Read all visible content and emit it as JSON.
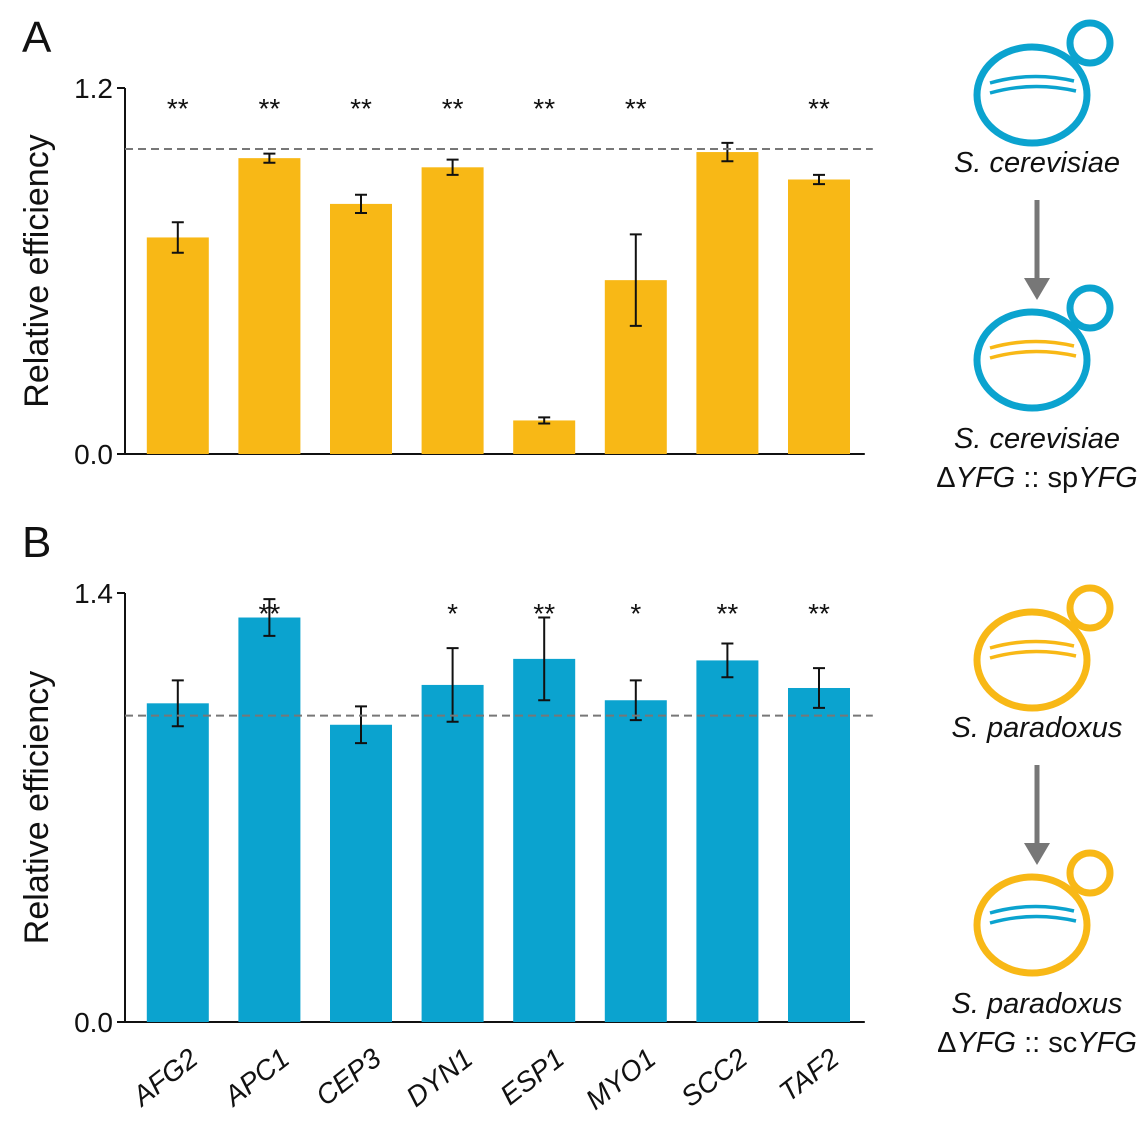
{
  "chart_data": [
    {
      "type": "bar",
      "panel_label": "A",
      "y_label": "Relative efficiency",
      "categories": [
        null,
        null,
        null,
        null,
        null,
        null,
        null,
        null
      ],
      "values": [
        0.71,
        0.97,
        0.82,
        0.94,
        0.11,
        0.57,
        0.99,
        0.9
      ],
      "errors": [
        0.05,
        0.015,
        0.03,
        0.025,
        0.01,
        0.15,
        0.03,
        0.015
      ],
      "significance": [
        "**",
        "**",
        "**",
        "**",
        "**",
        "**",
        null,
        "**"
      ],
      "color": "#f8b816",
      "ref_line": 1,
      "ylim": [
        0,
        1.2
      ],
      "yticks": [
        {
          "value": 0,
          "label": "0.0"
        },
        1.2
      ]
    },
    {
      "type": "bar",
      "panel_label": "B",
      "y_label": "Relative efficiency",
      "categories": [
        "AFG2",
        "APC1",
        "CEP3",
        "DYN1",
        "ESP1",
        "MYO1",
        "SCC2",
        "TAF2"
      ],
      "values": [
        1.04,
        1.32,
        0.97,
        1.1,
        1.185,
        1.05,
        1.18,
        1.09
      ],
      "errors": [
        0.075,
        0.06,
        0.06,
        0.12,
        0.135,
        0.065,
        0.055,
        0.065
      ],
      "significance": [
        null,
        "**",
        null,
        "*",
        "**",
        "*",
        "**",
        "**"
      ],
      "color": "#0ba3cf",
      "ref_line": 1,
      "ylim": [
        0,
        1.4
      ],
      "yticks": [
        {
          "value": 0,
          "label": "0.0"
        },
        1.4
      ]
    }
  ],
  "diagrams": [
    {
      "top_label": "S. cerevisiae",
      "bottom_label": "S. cerevisiae",
      "bottom_genotype": [
        "Δ",
        "YFG",
        " :: sp",
        "YFG"
      ],
      "cell_color": "#0ba3cf",
      "top_strand_color": "#0ba3cf",
      "bottom_strand_color": "#f8b816"
    },
    {
      "top_label": "S. paradoxus",
      "bottom_label": "S. paradoxus",
      "bottom_genotype": [
        "Δ",
        "YFG",
        " :: sc",
        "YFG"
      ],
      "cell_color": "#f8b816",
      "top_strand_color": "#f8b816",
      "bottom_strand_color": "#0ba3cf"
    }
  ]
}
